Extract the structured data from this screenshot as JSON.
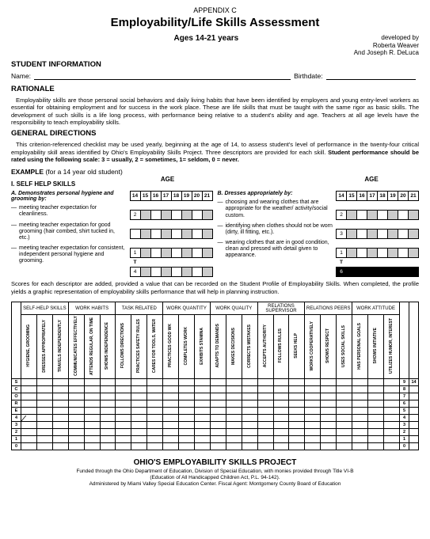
{
  "appendix": "APPENDIX C",
  "title": "Employability/Life Skills Assessment",
  "ages": "Ages 14-21 years",
  "developed": "developed by",
  "author1": "Roberta Weaver",
  "author2": "And Joseph R. DeLuca",
  "student_info": "STUDENT  INFORMATION",
  "name_label": "Name:",
  "birthdate_label": "Birthdate:",
  "rationale_hdr": "RATIONALE",
  "rationale_text": "Employability skills are those personal social behaviors and daily living habits that have been identified by employers and young entry-level workers as essential for obtaining employment and for success in the work place.  These are life skills that must be taught with the same rigor as basic skills.  The development of such skills is a life long process, with performance being relative to a student's ability and age.  Teachers at all age levels have the responsibility to teach employability skills.",
  "directions_hdr": "GENERAL DIRECTIONS",
  "directions_text1": "This criterion-referenced checklist may be used yearly, beginning at the age of 14, to assess student's level of performance in the twenty-four critical employability skill areas identified by Ohio's Employability Skills Project.  Three descriptors are provided for each skill.  ",
  "directions_bold": "Student performance should be rated using the following scale: 3 = usually, 2 = sometimes, 1= seldom, 0 = never.",
  "example": "EXAMPLE",
  "example_sub": " (for a 14 year old student)",
  "roman1": "I.  SELF HELP SKILLS",
  "age_hdr": "AGE",
  "colA": {
    "letter": "A.",
    "title": "Demonstrates personal hygiene and grooming by:",
    "items": [
      "meeting teacher expectation for cleanliness.",
      "meeting teacher expectation for good grooming (hair combed, shirt tucked in, etc.)",
      "meeting teacher expectation for consistent, independent personal hygiene and grooming."
    ],
    "ages": [
      "14",
      "15",
      "16",
      "17",
      "18",
      "19",
      "20",
      "21"
    ],
    "vals": [
      "2",
      "",
      "1",
      "4"
    ]
  },
  "colB": {
    "letter": "B.",
    "title": "Dresses appropriately by:",
    "items": [
      "choosing and wearing clothes that are appropriate for the weather/ activity/social custom.",
      "identifying when clothes should not be worn (dirty, ill fitting, etc.).",
      "wearing clothes that are in good condition, clean and pressed with detail given to appearance."
    ],
    "ages": [
      "14",
      "15",
      "16",
      "17",
      "18",
      "19",
      "20",
      "21"
    ],
    "vals": [
      "2",
      "3",
      "1",
      "6"
    ]
  },
  "t_label": "T",
  "score_text": "Scores for each descriptor are added, provided a value that can be recorded on the Student Profile of Employability Skills.  When completed, the profile yields a graphic representation of employability skills performance that will help in planning instruction.",
  "profile": {
    "score": "S C O R E",
    "age": "A G E",
    "scores": [
      "9",
      "8",
      "7",
      "6",
      "5",
      "4",
      "3",
      "2",
      "1",
      "0"
    ],
    "years": "14   Y E A R S",
    "cats": [
      "SELF-HELP SKILLS",
      "",
      "WORK HABITS",
      "",
      "TASK RELATED",
      "",
      "WORK QUANTITY",
      "",
      "WORK QUALITY",
      "",
      "RELATIONS SUPERVISOR",
      "",
      "RELATIONS PEERS",
      "",
      "WORK ATTITUDE",
      ""
    ],
    "cols": [
      "HYGIENE, GROOMING",
      "DRESSES APPROPRIATELY",
      "TRAVELS INDEPENDENTLY",
      "COMMUNICATES EFFECTIVELY",
      "ATTENDS REGULAR, ON TIME",
      "SHOWS INDEPENDENCE",
      "FOLLOWS DIRECTIONS",
      "PRACTICES SAFETY RULES",
      "CARES FOR TOOLS, MATER",
      "PRACTICES GOOD WK",
      "COMPLETES WORK",
      "EXHIBITS STAMINA",
      "ADAPTS TO DEMANDS",
      "MAKES DECISIONS",
      "CORRECTS MISTAKES",
      "ACCEPTS AUTHORITY",
      "FOLLOWS RULES",
      "SEEKS HELP",
      "WORKS COOPERATIVELY",
      "SHOWS RESPECT",
      "USES SOCIAL SKILLS",
      "HAS PERSONAL GOALS",
      "SHOWS INITIATIVE",
      "UTILIZES HUMOR, INTEREST"
    ]
  },
  "footer_title": "OHIO'S EMPLOYABILITY SKILLS PROJECT",
  "footer1": "Funded through the Ohio Department of Education, Division of Special Education, with monies provided through Title VI-B",
  "footer2": "(Education of All Handicapped Children Act, P.L. 94-142).",
  "footer3": "Administered by Miami Valley Special Education Center.  Fiscal Agent:  Montgomery County Board of Education"
}
